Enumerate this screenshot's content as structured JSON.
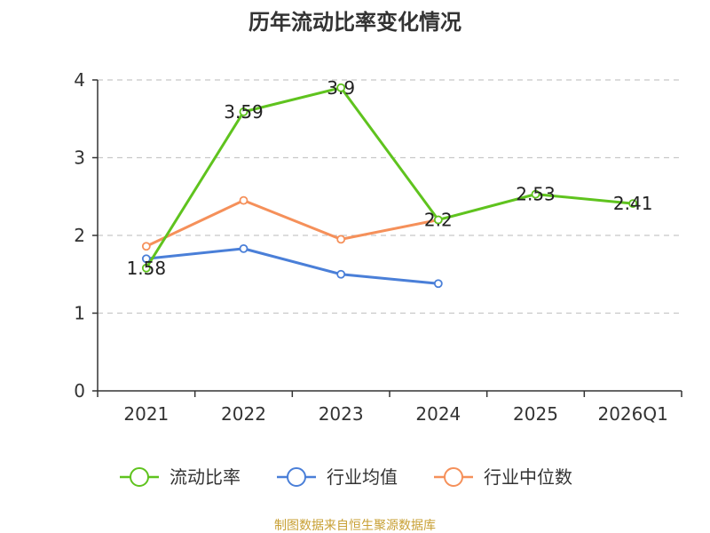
{
  "chart_data": {
    "type": "line",
    "title": "历年流动比率变化情况",
    "categories": [
      "2021",
      "2022",
      "2023",
      "2024",
      "2025",
      "2026Q1"
    ],
    "ylim": [
      0,
      4
    ],
    "yticks": [
      "0",
      "1",
      "2",
      "3",
      "4"
    ],
    "grid": true,
    "legend_position": "bottom",
    "series": [
      {
        "name": "流动比率",
        "color": "#5fc31e",
        "values": [
          1.58,
          3.59,
          3.9,
          2.2,
          2.53,
          2.41
        ],
        "labels": [
          "1.58",
          "3.59",
          "3.9",
          "2.2",
          "2.53",
          "2.41"
        ]
      },
      {
        "name": "行业均值",
        "color": "#4a7fd8",
        "values": [
          1.7,
          1.83,
          1.5,
          1.38,
          null,
          null
        ]
      },
      {
        "name": "行业中位数",
        "color": "#f5905a",
        "values": [
          1.86,
          2.45,
          1.95,
          2.2,
          null,
          null
        ]
      }
    ],
    "source": "制图数据来自恒生聚源数据库"
  }
}
